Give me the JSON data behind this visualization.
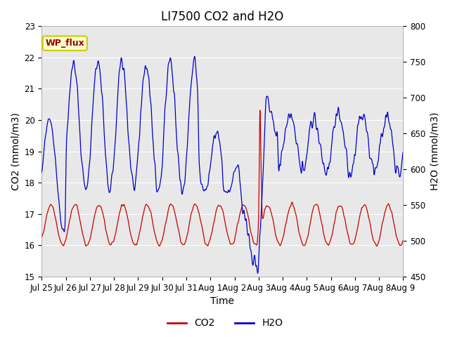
{
  "title": "LI7500 CO2 and H2O",
  "xlabel": "Time",
  "ylabel_left": "CO2 (mmol/m3)",
  "ylabel_right": "H2O (mmol/m3)",
  "co2_ylim": [
    15.0,
    23.0
  ],
  "h2o_ylim": [
    450,
    800
  ],
  "co2_yticks": [
    15.0,
    16.0,
    17.0,
    18.0,
    19.0,
    20.0,
    21.0,
    22.0,
    23.0
  ],
  "h2o_yticks": [
    450,
    500,
    550,
    600,
    650,
    700,
    750,
    800
  ],
  "co2_color": "#cc0000",
  "h2o_color": "#0000cc",
  "fig_bg": "#ffffff",
  "plot_bg": "#e8e8e8",
  "label_box_text": "WP_flux",
  "label_box_facecolor": "#ffffcc",
  "label_box_edgecolor": "#cccc00",
  "label_box_textcolor": "#990000",
  "xtick_labels": [
    "Jul 25",
    "Jul 26",
    "Jul 27",
    "Jul 28",
    "Jul 29",
    "Jul 30",
    "Jul 31",
    "Aug 1",
    "Aug 2",
    "Aug 3",
    "Aug 4",
    "Aug 5",
    "Aug 6",
    "Aug 7",
    "Aug 8",
    "Aug 9"
  ],
  "title_fontsize": 12,
  "axis_label_fontsize": 10,
  "tick_fontsize": 8.5,
  "legend_fontsize": 10
}
